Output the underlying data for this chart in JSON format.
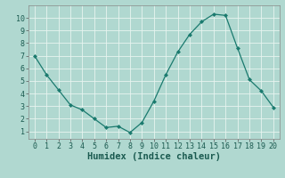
{
  "x": [
    0,
    1,
    2,
    3,
    4,
    5,
    6,
    7,
    8,
    9,
    10,
    11,
    12,
    13,
    14,
    15,
    16,
    17,
    18,
    19,
    20
  ],
  "y": [
    7.0,
    5.5,
    4.3,
    3.1,
    2.7,
    2.0,
    1.3,
    1.4,
    0.9,
    1.7,
    3.4,
    5.5,
    7.3,
    8.7,
    9.7,
    10.3,
    10.2,
    7.6,
    5.1,
    4.2,
    2.9
  ],
  "line_color": "#1a7a6e",
  "marker_color": "#1a7a6e",
  "bg_color": "#b0d8d0",
  "grid_color": "#e8f4f0",
  "xlabel": "Humidex (Indice chaleur)",
  "xlabel_fontsize": 7.5,
  "tick_fontsize": 6,
  "xlim": [
    -0.5,
    20.5
  ],
  "ylim": [
    0.4,
    11.0
  ],
  "yticks": [
    1,
    2,
    3,
    4,
    5,
    6,
    7,
    8,
    9,
    10
  ],
  "xticks": [
    0,
    1,
    2,
    3,
    4,
    5,
    6,
    7,
    8,
    9,
    10,
    11,
    12,
    13,
    14,
    15,
    16,
    17,
    18,
    19,
    20
  ]
}
